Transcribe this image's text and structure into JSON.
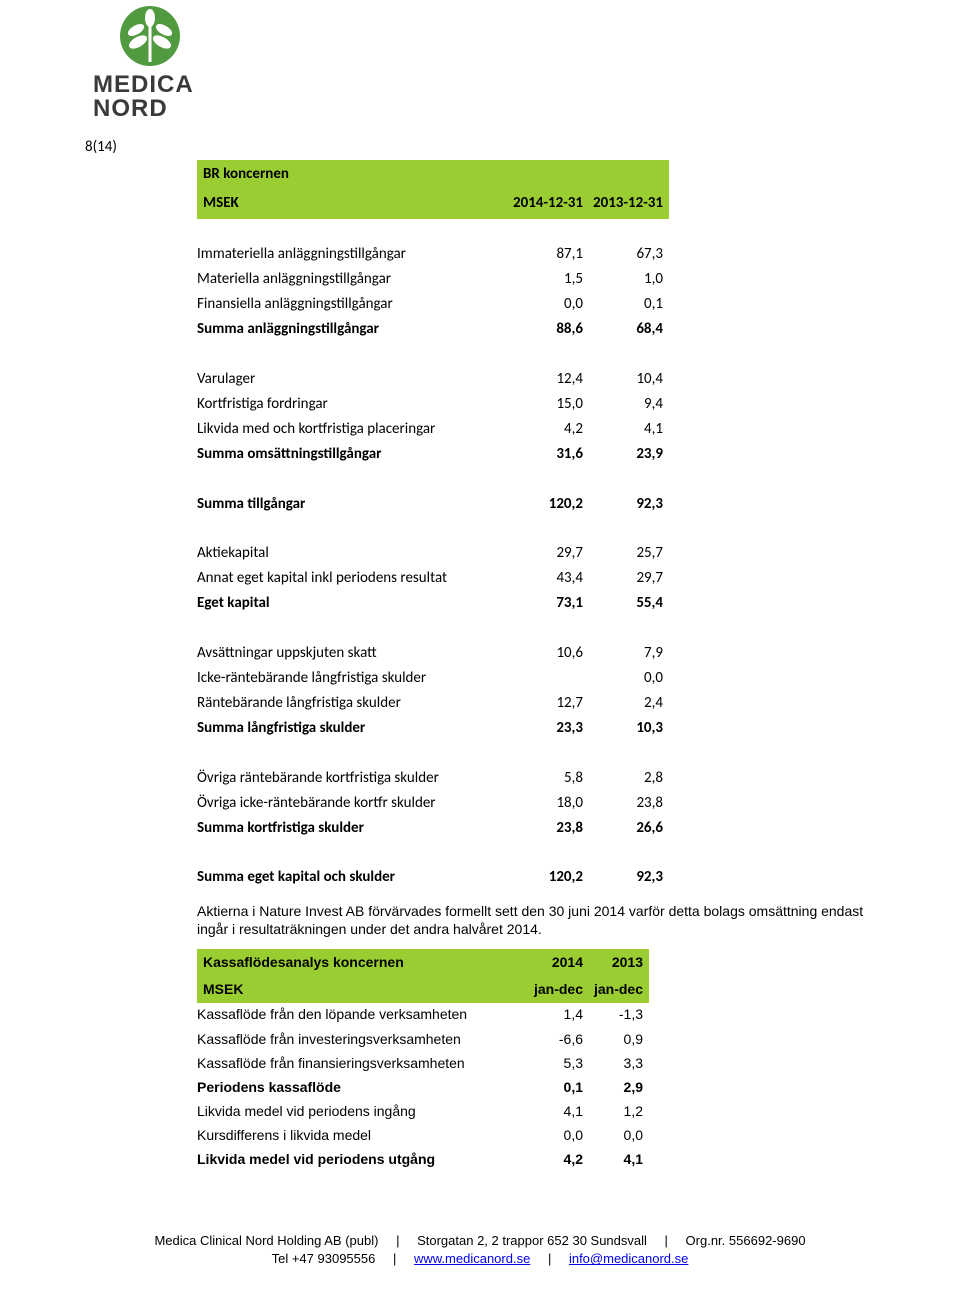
{
  "page_number": "8(14)",
  "brand": {
    "line1": "MEDICA",
    "line2": "NORD",
    "accent_color": "#529a3f"
  },
  "table1": {
    "header": {
      "title": "BR koncernen",
      "unit": "MSEK",
      "c1": "2014-12-31",
      "c2": "2013-12-31",
      "bg": "#9acd32"
    },
    "rows": [
      {
        "l": "Immateriella anläggningstillgångar",
        "v1": "87,1",
        "v2": "67,3",
        "bold": false
      },
      {
        "l": "Materiella anläggningstillgångar",
        "v1": "1,5",
        "v2": "1,0",
        "bold": false
      },
      {
        "l": "Finansiella anläggningstillgångar",
        "v1": "0,0",
        "v2": "0,1",
        "bold": false
      },
      {
        "l": "Summa anläggningstillgångar",
        "v1": "88,6",
        "v2": "68,4",
        "bold": true
      },
      {
        "sp": true
      },
      {
        "l": "Varulager",
        "v1": "12,4",
        "v2": "10,4",
        "bold": false
      },
      {
        "l": "Kortfristiga fordringar",
        "v1": "15,0",
        "v2": "9,4",
        "bold": false
      },
      {
        "l": "Likvida med och kortfristiga placeringar",
        "v1": "4,2",
        "v2": "4,1",
        "bold": false
      },
      {
        "l": "Summa omsättningstillgångar",
        "v1": "31,6",
        "v2": "23,9",
        "bold": true
      },
      {
        "sp": true
      },
      {
        "l": "Summa tillgångar",
        "v1": "120,2",
        "v2": "92,3",
        "bold": true
      },
      {
        "sp": true
      },
      {
        "l": "Aktiekapital",
        "v1": "29,7",
        "v2": "25,7",
        "bold": false
      },
      {
        "l": "Annat eget kapital inkl periodens resultat",
        "v1": "43,4",
        "v2": "29,7",
        "bold": false
      },
      {
        "l": "Eget kapital",
        "v1": "73,1",
        "v2": "55,4",
        "bold": true
      },
      {
        "sp": true
      },
      {
        "l": "Avsättningar uppskjuten skatt",
        "v1": "10,6",
        "v2": "7,9",
        "bold": false
      },
      {
        "l": "Icke-räntebärande långfristiga skulder",
        "v1": "",
        "v2": "0,0",
        "bold": false
      },
      {
        "l": "Räntebärande långfristiga skulder",
        "v1": "12,7",
        "v2": "2,4",
        "bold": false
      },
      {
        "l": "Summa långfristiga skulder",
        "v1": "23,3",
        "v2": "10,3",
        "bold": true
      },
      {
        "sp": true
      },
      {
        "l": "Övriga räntebärande kortfristiga skulder",
        "v1": "5,8",
        "v2": "2,8",
        "bold": false
      },
      {
        "l": "Övriga icke-räntebärande kortfr skulder",
        "v1": "18,0",
        "v2": "23,8",
        "bold": false
      },
      {
        "l": "Summa kortfristiga skulder",
        "v1": "23,8",
        "v2": "26,6",
        "bold": true
      },
      {
        "sp": true
      },
      {
        "l": "Summa eget kapital och skulder",
        "v1": "120,2",
        "v2": "92,3",
        "bold": true
      }
    ]
  },
  "note_text": "Aktierna i Nature Invest AB förvärvades formellt sett den 30 juni 2014 varför detta bolags omsättning endast ingår i resultaträkningen under det andra halvåret 2014.",
  "table2": {
    "header": {
      "title": "Kassaflödesanalys koncernen",
      "unit": "MSEK",
      "c1": "2014",
      "c2": "2013",
      "s1": "jan-dec",
      "s2": "jan-dec",
      "bg": "#9acd32"
    },
    "rows": [
      {
        "l": "Kassaflöde från den löpande verksamheten",
        "v1": "1,4",
        "v2": "-1,3",
        "bold": false
      },
      {
        "l": "Kassaflöde från investeringsverksamheten",
        "v1": "-6,6",
        "v2": "0,9",
        "bold": false
      },
      {
        "l": "Kassaflöde från finansieringsverksamheten",
        "v1": "5,3",
        "v2": "3,3",
        "bold": false
      },
      {
        "l": "Periodens kassaflöde",
        "v1": "0,1",
        "v2": "2,9",
        "bold": true
      },
      {
        "l": "Likvida medel vid periodens ingång",
        "v1": "4,1",
        "v2": "1,2",
        "bold": false
      },
      {
        "l": "Kursdifferens i likvida medel",
        "v1": "0,0",
        "v2": "0,0",
        "bold": false
      },
      {
        "l": "Likvida medel vid periodens utgång",
        "v1": "4,2",
        "v2": "4,1",
        "bold": true
      }
    ]
  },
  "footer": {
    "company": "Medica Clinical Nord Holding AB (publ)",
    "address": "Storgatan 2, 2 trappor 652 30 Sundsvall",
    "orgnr_label": "Org.nr.",
    "orgnr": "556692-9690",
    "tel": "Tel +47 93095556",
    "web": "www.medicanord.se",
    "email": "info@medicanord.se"
  }
}
